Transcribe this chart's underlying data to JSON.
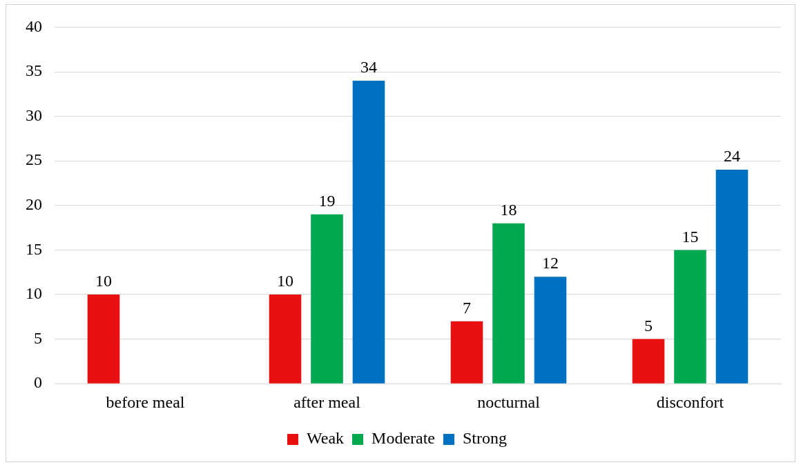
{
  "chart_data": {
    "type": "bar",
    "categories": [
      "before meal",
      "after meal",
      "nocturnal",
      "disconfort"
    ],
    "series": [
      {
        "name": "Weak",
        "color": "#e81010",
        "values": [
          10,
          10,
          7,
          5
        ]
      },
      {
        "name": "Moderate",
        "color": "#00a850",
        "values": [
          null,
          19,
          18,
          15
        ]
      },
      {
        "name": "Strong",
        "color": "#0070c0",
        "values": [
          null,
          34,
          12,
          24
        ]
      }
    ],
    "ylim": [
      0,
      40
    ],
    "yticks": [
      0,
      5,
      10,
      15,
      20,
      25,
      30,
      35,
      40
    ],
    "grid": "y",
    "legend": "bottom",
    "data_labels": true
  }
}
